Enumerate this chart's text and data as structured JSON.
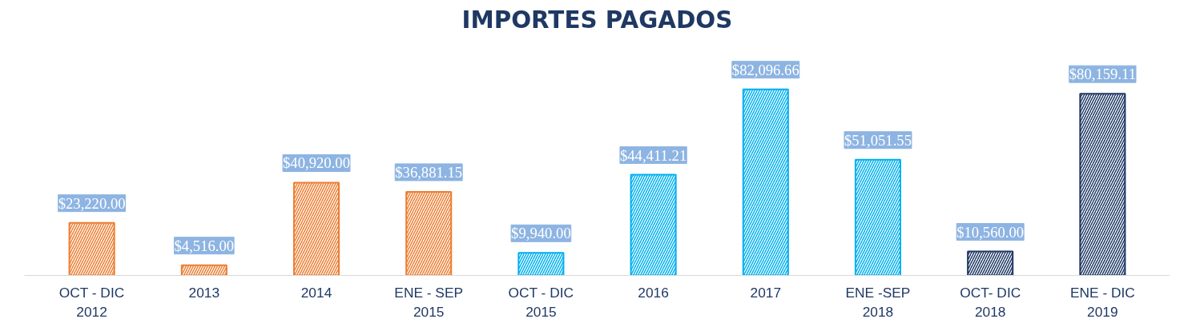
{
  "chart_data": {
    "type": "bar",
    "title": "IMPORTES PAGADOS",
    "categories": [
      "OCT - DIC\n2012",
      "2013",
      "2014",
      "ENE - SEP\n2015",
      "OCT - DIC\n2015",
      "2016",
      "2017",
      "ENE -SEP\n2018",
      "OCT- DIC\n2018",
      "ENE - DIC\n2019"
    ],
    "values": [
      23220.0,
      4516.0,
      40920.0,
      36881.15,
      9940.0,
      44411.21,
      82096.66,
      51051.55,
      10560.0,
      80159.11
    ],
    "value_labels": [
      "$23,220.00",
      "$4,516.00",
      "$40,920.00",
      "$36,881.15",
      "$9,940.00",
      "$44,411.21",
      "$82,096.66",
      "$51,051.55",
      "$10,560.00",
      "$80,159.11"
    ],
    "colors": [
      "#ed7d31",
      "#ed7d31",
      "#ed7d31",
      "#ed7d31",
      "#00b0f0",
      "#00b0f0",
      "#00b0f0",
      "#00b0f0",
      "#1f3864",
      "#1f3864"
    ],
    "grid": false
  }
}
